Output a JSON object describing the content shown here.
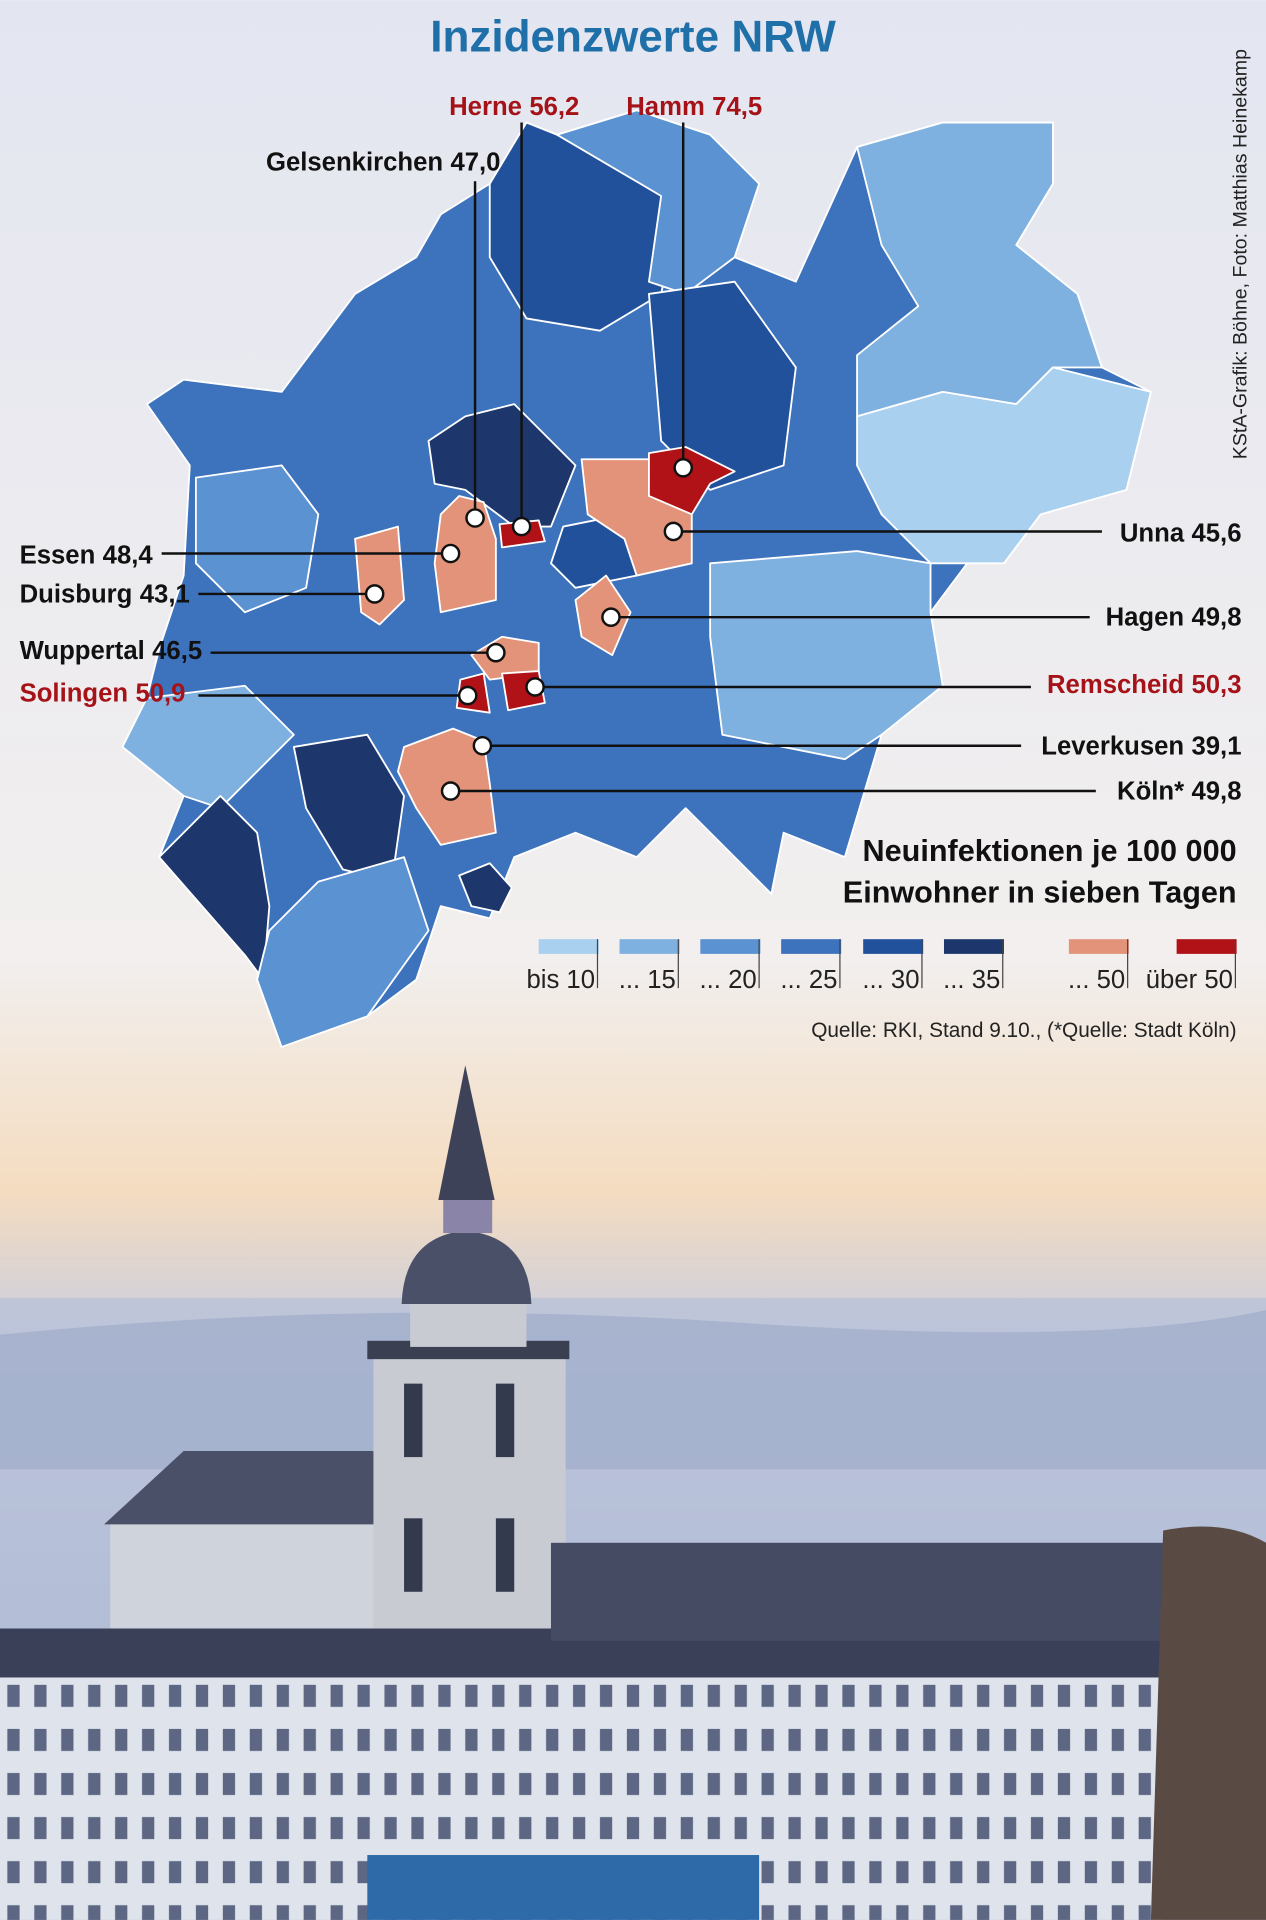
{
  "title": "Inzidenzwerte NRW",
  "credit": "KStA-Grafik: Böhne, Foto: Matthias Heinekamp",
  "callouts": [
    {
      "name": "Herne",
      "value": "56,2"
    },
    {
      "name": "Hamm",
      "value": "74,5"
    },
    {
      "name": "Gelsenkirchen",
      "value": "47,0"
    },
    {
      "name": "Essen",
      "value": "48,4"
    },
    {
      "name": "Duisburg",
      "value": "43,1"
    },
    {
      "name": "Wuppertal",
      "value": "46,5"
    },
    {
      "name": "Solingen",
      "value": "50,9"
    },
    {
      "name": "Unna",
      "value": "45,6"
    },
    {
      "name": "Hagen",
      "value": "49,8"
    },
    {
      "name": "Remscheid",
      "value": "50,3"
    },
    {
      "name": "Leverkusen",
      "value": "39,1"
    },
    {
      "name": "Köln*",
      "value": "49,8"
    }
  ],
  "legend": {
    "title_lines": [
      "Neuinfektionen je 100 000",
      "Einwohner in sieben Tagen"
    ],
    "items": [
      "bis 10",
      "... 15",
      "... 20",
      "... 25",
      "... 30",
      "... 35",
      "... 50",
      "über 50"
    ]
  },
  "source": "Quelle: RKI, Stand 9.10., (*Quelle: Stadt Köln)"
}
